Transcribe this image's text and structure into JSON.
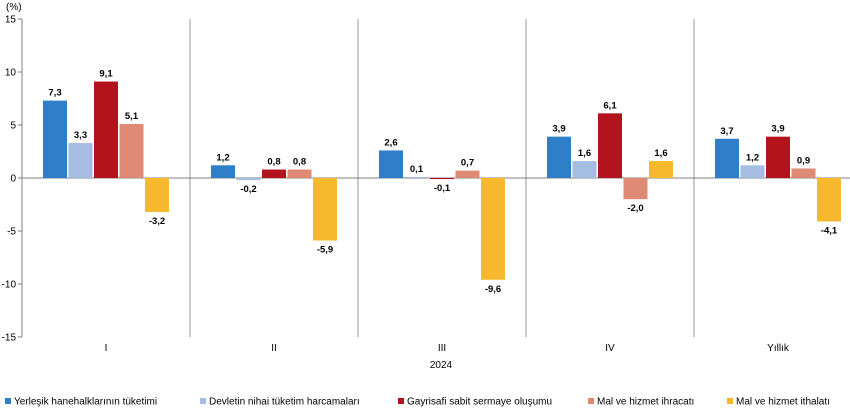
{
  "chart_data": {
    "type": "bar",
    "unit_label": "(%)",
    "categories": [
      "I",
      "II",
      "III",
      "IV",
      "Yıllık"
    ],
    "group_title": "2024",
    "ylim": [
      -15,
      15
    ],
    "yticks": [
      -15,
      -10,
      -5,
      0,
      5,
      10,
      15
    ],
    "grid": false,
    "legend_position": "bottom",
    "series": [
      {
        "name": "Yerleşik hanehalklarının tüketimi",
        "color": "#2f7fc8",
        "values": [
          7.3,
          1.2,
          2.6,
          3.9,
          3.7
        ],
        "labels": [
          "7,3",
          "1,2",
          "2,6",
          "3,9",
          "3,7"
        ]
      },
      {
        "name": "Devletin nihai tüketim harcamaları",
        "color": "#a6bde3",
        "values": [
          3.3,
          -0.2,
          0.1,
          1.6,
          1.2
        ],
        "labels": [
          "3,3",
          "-0,2",
          "0,1",
          "1,6",
          "1,2"
        ]
      },
      {
        "name": "Gayrisafi sabit sermaye oluşumu",
        "color": "#b3131c",
        "values": [
          9.1,
          0.8,
          -0.1,
          6.1,
          3.9
        ],
        "labels": [
          "9,1",
          "0,8",
          "-0,1",
          "6,1",
          "3,9"
        ]
      },
      {
        "name": "Mal ve hizmet ihracatı",
        "color": "#df8a75",
        "values": [
          5.1,
          0.8,
          0.7,
          -2.0,
          0.9
        ],
        "labels": [
          "5,1",
          "0,8",
          "0,7",
          "-2,0",
          "0,9"
        ]
      },
      {
        "name": "Mal ve hizmet ithalatı",
        "color": "#f6b92d",
        "values": [
          -3.2,
          -5.9,
          -9.6,
          1.6,
          -4.1
        ],
        "labels": [
          "-3,2",
          "-5,9",
          "-9,6",
          "1,6",
          "-4,1"
        ]
      }
    ]
  }
}
